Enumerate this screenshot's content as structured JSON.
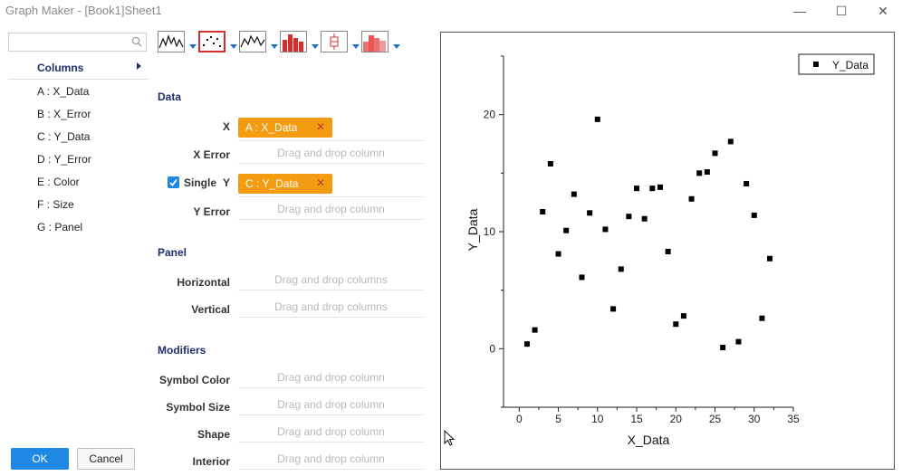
{
  "window": {
    "title": "Graph Maker - [Book1]Sheet1",
    "minimize": "—",
    "maximize": "☐",
    "close": "✕"
  },
  "sidebar": {
    "search_placeholder": "",
    "columns_label": "Columns",
    "items": [
      "A : X_Data",
      "B : X_Error",
      "C : Y_Data",
      "D : Y_Error",
      "E : Color",
      "F : Size",
      "G : Panel"
    ]
  },
  "buttons": {
    "ok": "OK",
    "cancel": "Cancel"
  },
  "toolbar": {
    "icons": [
      "line-plot-icon",
      "scatter-plot-icon",
      "line-symbol-plot-icon",
      "column-plot-icon",
      "box-plot-icon",
      "histogram-icon"
    ],
    "selected": "scatter-plot-icon"
  },
  "data_section": {
    "title": "Data",
    "x_label": "X",
    "x_value": "A : X_Data",
    "xerror_label": "X Error",
    "single_label": "Single",
    "y_label": "Y",
    "y_value": "C : Y_Data",
    "yerror_label": "Y Error",
    "drop_hint": "Drag and drop column",
    "remove_glyph": "✕",
    "single_checked": true
  },
  "panel_section": {
    "title": "Panel",
    "horizontal_label": "Horizontal",
    "vertical_label": "Vertical",
    "drop_hint": "Drag and drop columns"
  },
  "modifiers_section": {
    "title": "Modifiers",
    "symbol_color_label": "Symbol Color",
    "symbol_size_label": "Symbol Size",
    "shape_label": "Shape",
    "interior_label": "Interior",
    "drop_hint": "Drag and drop column"
  },
  "colors": {
    "accent": "#1e88e5",
    "chip": "#f39c12",
    "selected_border": "#d32f2f",
    "section": "#1f2f6e"
  },
  "chart_data": {
    "type": "scatter",
    "xlabel": "X_Data",
    "ylabel": "Y_Data",
    "legend": "Y_Data",
    "legend_position": "top-right",
    "xlim": [
      -2,
      35
    ],
    "ylim": [
      -5,
      25
    ],
    "xticks": [
      0,
      5,
      10,
      15,
      20,
      25,
      30,
      35
    ],
    "yticks": [
      0,
      10,
      20
    ],
    "x": [
      1,
      2,
      3,
      4,
      5,
      6,
      7,
      8,
      9,
      10,
      11,
      12,
      13,
      14,
      15,
      16,
      17,
      18,
      19,
      20,
      21,
      22,
      23,
      24,
      25,
      26,
      27,
      28,
      29,
      30,
      31,
      32
    ],
    "y": [
      0.4,
      1.6,
      11.7,
      15.8,
      8.1,
      10.1,
      13.2,
      6.1,
      11.6,
      19.6,
      10.2,
      3.4,
      6.8,
      11.3,
      13.7,
      11.1,
      13.7,
      13.8,
      8.3,
      2.1,
      2.8,
      12.8,
      15.0,
      15.1,
      16.7,
      0.1,
      17.7,
      0.6,
      14.1,
      11.4,
      2.6,
      7.7
    ]
  }
}
